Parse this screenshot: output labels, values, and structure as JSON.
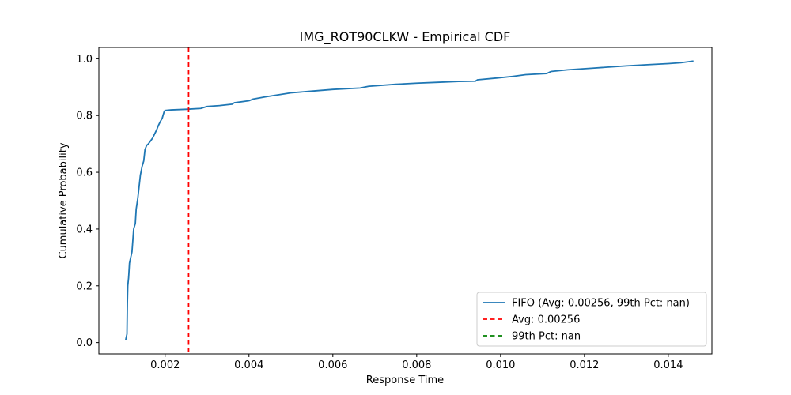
{
  "chart_data": {
    "type": "line",
    "title": "IMG_ROT90CLKW - Empirical CDF",
    "xlabel": "Response Time",
    "ylabel": "Cumulative Probability",
    "xlim": [
      0.00042,
      0.01504
    ],
    "ylim": [
      -0.04,
      1.04
    ],
    "xticks": [
      0.002,
      0.004,
      0.006,
      0.008,
      0.01,
      0.012,
      0.014
    ],
    "xtick_labels": [
      "0.002",
      "0.004",
      "0.006",
      "0.008",
      "0.010",
      "0.012",
      "0.014"
    ],
    "yticks": [
      0.0,
      0.2,
      0.4,
      0.6,
      0.8,
      1.0
    ],
    "ytick_labels": [
      "0.0",
      "0.2",
      "0.4",
      "0.6",
      "0.8",
      "1.0"
    ],
    "grid": false,
    "legend_position": "lower-right",
    "series": [
      {
        "name": "FIFO (Avg: 0.00256, 99th Pct: nan)",
        "color": "#1f77b4",
        "style": "solid",
        "x": [
          0.00106,
          0.00109,
          0.0011,
          0.00111,
          0.00113,
          0.00115,
          0.00118,
          0.00121,
          0.00125,
          0.00129,
          0.00131,
          0.00135,
          0.00138,
          0.00141,
          0.00145,
          0.00149,
          0.00152,
          0.00156,
          0.0016,
          0.00165,
          0.0017,
          0.00175,
          0.0018,
          0.00184,
          0.00189,
          0.00193,
          0.00196,
          0.00198,
          0.002,
          0.00215,
          0.0025,
          0.00285,
          0.003,
          0.0033,
          0.0036,
          0.00365,
          0.004,
          0.0041,
          0.0044,
          0.0047,
          0.005,
          0.0055,
          0.006,
          0.00665,
          0.00685,
          0.0075,
          0.008,
          0.0085,
          0.009,
          0.0094,
          0.00945,
          0.0099,
          0.0103,
          0.0106,
          0.0111,
          0.0112,
          0.0116,
          0.0122,
          0.013,
          0.0135,
          0.014,
          0.0143,
          0.0146
        ],
        "y": [
          0.01,
          0.03,
          0.14,
          0.2,
          0.23,
          0.28,
          0.3,
          0.32,
          0.4,
          0.42,
          0.47,
          0.51,
          0.55,
          0.59,
          0.62,
          0.64,
          0.68,
          0.695,
          0.7,
          0.71,
          0.72,
          0.735,
          0.75,
          0.765,
          0.78,
          0.79,
          0.805,
          0.815,
          0.818,
          0.82,
          0.822,
          0.825,
          0.832,
          0.835,
          0.84,
          0.845,
          0.852,
          0.858,
          0.866,
          0.873,
          0.88,
          0.886,
          0.892,
          0.897,
          0.903,
          0.91,
          0.914,
          0.917,
          0.92,
          0.921,
          0.926,
          0.932,
          0.938,
          0.944,
          0.948,
          0.955,
          0.961,
          0.967,
          0.975,
          0.979,
          0.983,
          0.986,
          0.992
        ]
      }
    ],
    "vlines": [
      {
        "name": "Avg: 0.00256",
        "x": 0.00256,
        "color": "#ff0000",
        "style": "dashed"
      },
      {
        "name": "99th Pct: nan",
        "x": null,
        "color": "#008000",
        "style": "dashed"
      }
    ]
  }
}
